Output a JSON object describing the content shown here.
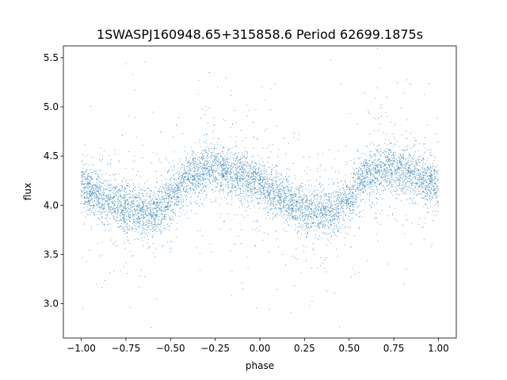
{
  "chart_data": {
    "type": "scatter",
    "title": "1SWASPJ160948.65+315858.6 Period 62699.1875s",
    "xlabel": "phase",
    "ylabel": "flux",
    "xlim": [
      -1.1,
      1.1
    ],
    "ylim": [
      2.65,
      5.62
    ],
    "x_ticks": [
      -1.0,
      -0.75,
      -0.5,
      -0.25,
      0.0,
      0.25,
      0.5,
      0.75,
      1.0
    ],
    "x_tick_labels": [
      "−1.00",
      "−0.75",
      "−0.50",
      "−0.25",
      "0.00",
      "0.25",
      "0.50",
      "0.75",
      "1.00"
    ],
    "y_ticks": [
      3.0,
      3.5,
      4.0,
      4.5,
      5.0,
      5.5
    ],
    "y_tick_labels": [
      "3.0",
      "3.5",
      "4.0",
      "4.5",
      "5.0",
      "5.5"
    ],
    "grid": false,
    "legend": "none",
    "marker_color": "#1f77b4",
    "series": [
      {
        "profile_phase": [
          -1.0,
          -0.9,
          -0.8,
          -0.7,
          -0.6,
          -0.5,
          -0.4,
          -0.3,
          -0.25,
          -0.2,
          -0.1,
          0.0,
          0.1,
          0.2,
          0.3,
          0.4,
          0.5,
          0.6,
          0.7,
          0.75,
          0.8,
          0.9,
          1.0
        ],
        "profile_flux": [
          4.2,
          4.1,
          4.0,
          3.95,
          3.93,
          4.05,
          4.3,
          4.36,
          4.37,
          4.35,
          4.3,
          4.2,
          4.1,
          3.98,
          3.95,
          3.93,
          4.05,
          4.3,
          4.36,
          4.37,
          4.35,
          4.3,
          4.2
        ],
        "scatter_sigma": 0.12,
        "n_points": 7000
      }
    ]
  }
}
